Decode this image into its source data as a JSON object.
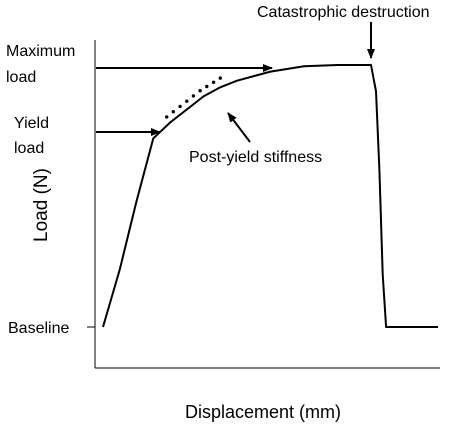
{
  "chart_data": {
    "type": "line",
    "title": "",
    "xlabel": "Displacement (mm)",
    "ylabel": "Load (N)",
    "xlim": [
      0,
      100
    ],
    "ylim": [
      0,
      100
    ],
    "grid": false,
    "legend": "none",
    "series": [
      {
        "x": [
          0,
          5,
          10,
          15,
          20,
          25,
          30,
          35,
          40,
          50,
          60,
          70,
          75,
          80,
          81.5,
          82.5,
          83.5,
          84.5,
          87.5,
          93,
          100
        ],
        "y": [
          0,
          22,
          48,
          72,
          78,
          83,
          88,
          91.5,
          94,
          97.5,
          99.5,
          100,
          100,
          100,
          90,
          60,
          20,
          0,
          0,
          0,
          0
        ]
      }
    ],
    "stiffness_dots": {
      "x": [
        19,
        21,
        23,
        25,
        27,
        29,
        31,
        33,
        35
      ],
      "y": [
        80,
        82,
        84,
        86,
        88,
        90,
        91.6,
        93.2,
        94.8
      ]
    },
    "annotations": {
      "max_load_line1": "Maximum",
      "max_load_line2": "load",
      "yield_line1": "Yield",
      "yield_line2": "load",
      "baseline": "Baseline",
      "post_yield": "Post-yield stiffness",
      "destruction": "Catastrophic destruction"
    }
  }
}
